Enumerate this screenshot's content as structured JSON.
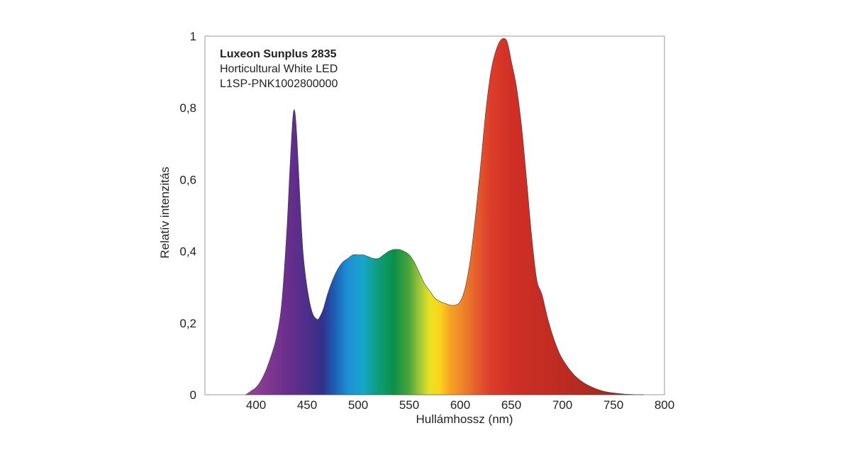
{
  "chart_data": {
    "type": "area",
    "title_lines": [
      "Luxeon Sunplus 2835",
      "Horticultural White LED",
      "L1SP-PNK1002800000"
    ],
    "xlabel": "Hullámhossz (nm)",
    "ylabel": "Relatív intenzitás",
    "xlim": [
      350,
      800
    ],
    "ylim": [
      0,
      1
    ],
    "x_ticks": [
      400,
      450,
      500,
      550,
      600,
      650,
      700,
      750,
      800
    ],
    "y_ticks": [
      0,
      0.2,
      0.4,
      0.6,
      0.8,
      1
    ],
    "x_tick_labels": [
      "400",
      "450",
      "500",
      "550",
      "600",
      "650",
      "700",
      "750",
      "800"
    ],
    "y_tick_labels": [
      "0",
      "0,2",
      "0,4",
      "0,6",
      "0,8",
      "1"
    ],
    "grid": false,
    "fill": "visible-spectrum gradient",
    "series": [
      {
        "x": [
          390,
          395,
          400,
          405,
          410,
          415,
          420,
          425,
          430,
          433,
          436,
          438,
          440,
          443,
          446,
          450,
          455,
          460,
          463,
          466,
          470,
          475,
          480,
          485,
          490,
          495,
          500,
          505,
          510,
          515,
          520,
          525,
          530,
          535,
          540,
          545,
          550,
          555,
          560,
          565,
          570,
          575,
          580,
          585,
          590,
          595,
          600,
          605,
          610,
          615,
          620,
          625,
          630,
          635,
          640,
          645,
          648,
          650,
          655,
          660,
          665,
          670,
          675,
          680,
          685,
          690,
          695,
          700,
          710,
          720,
          730,
          740,
          750,
          760,
          770,
          780
        ],
        "y": [
          0.0,
          0.01,
          0.02,
          0.04,
          0.07,
          0.11,
          0.16,
          0.25,
          0.45,
          0.62,
          0.77,
          0.79,
          0.72,
          0.55,
          0.4,
          0.3,
          0.23,
          0.21,
          0.22,
          0.24,
          0.28,
          0.32,
          0.35,
          0.37,
          0.38,
          0.39,
          0.39,
          0.39,
          0.385,
          0.38,
          0.38,
          0.39,
          0.4,
          0.405,
          0.405,
          0.4,
          0.39,
          0.37,
          0.34,
          0.31,
          0.29,
          0.27,
          0.26,
          0.255,
          0.25,
          0.25,
          0.26,
          0.3,
          0.38,
          0.5,
          0.64,
          0.79,
          0.9,
          0.96,
          0.99,
          0.99,
          0.96,
          0.93,
          0.86,
          0.75,
          0.6,
          0.44,
          0.32,
          0.28,
          0.22,
          0.17,
          0.13,
          0.1,
          0.06,
          0.035,
          0.02,
          0.01,
          0.005,
          0.002,
          0.0005,
          0.0
        ]
      }
    ]
  }
}
